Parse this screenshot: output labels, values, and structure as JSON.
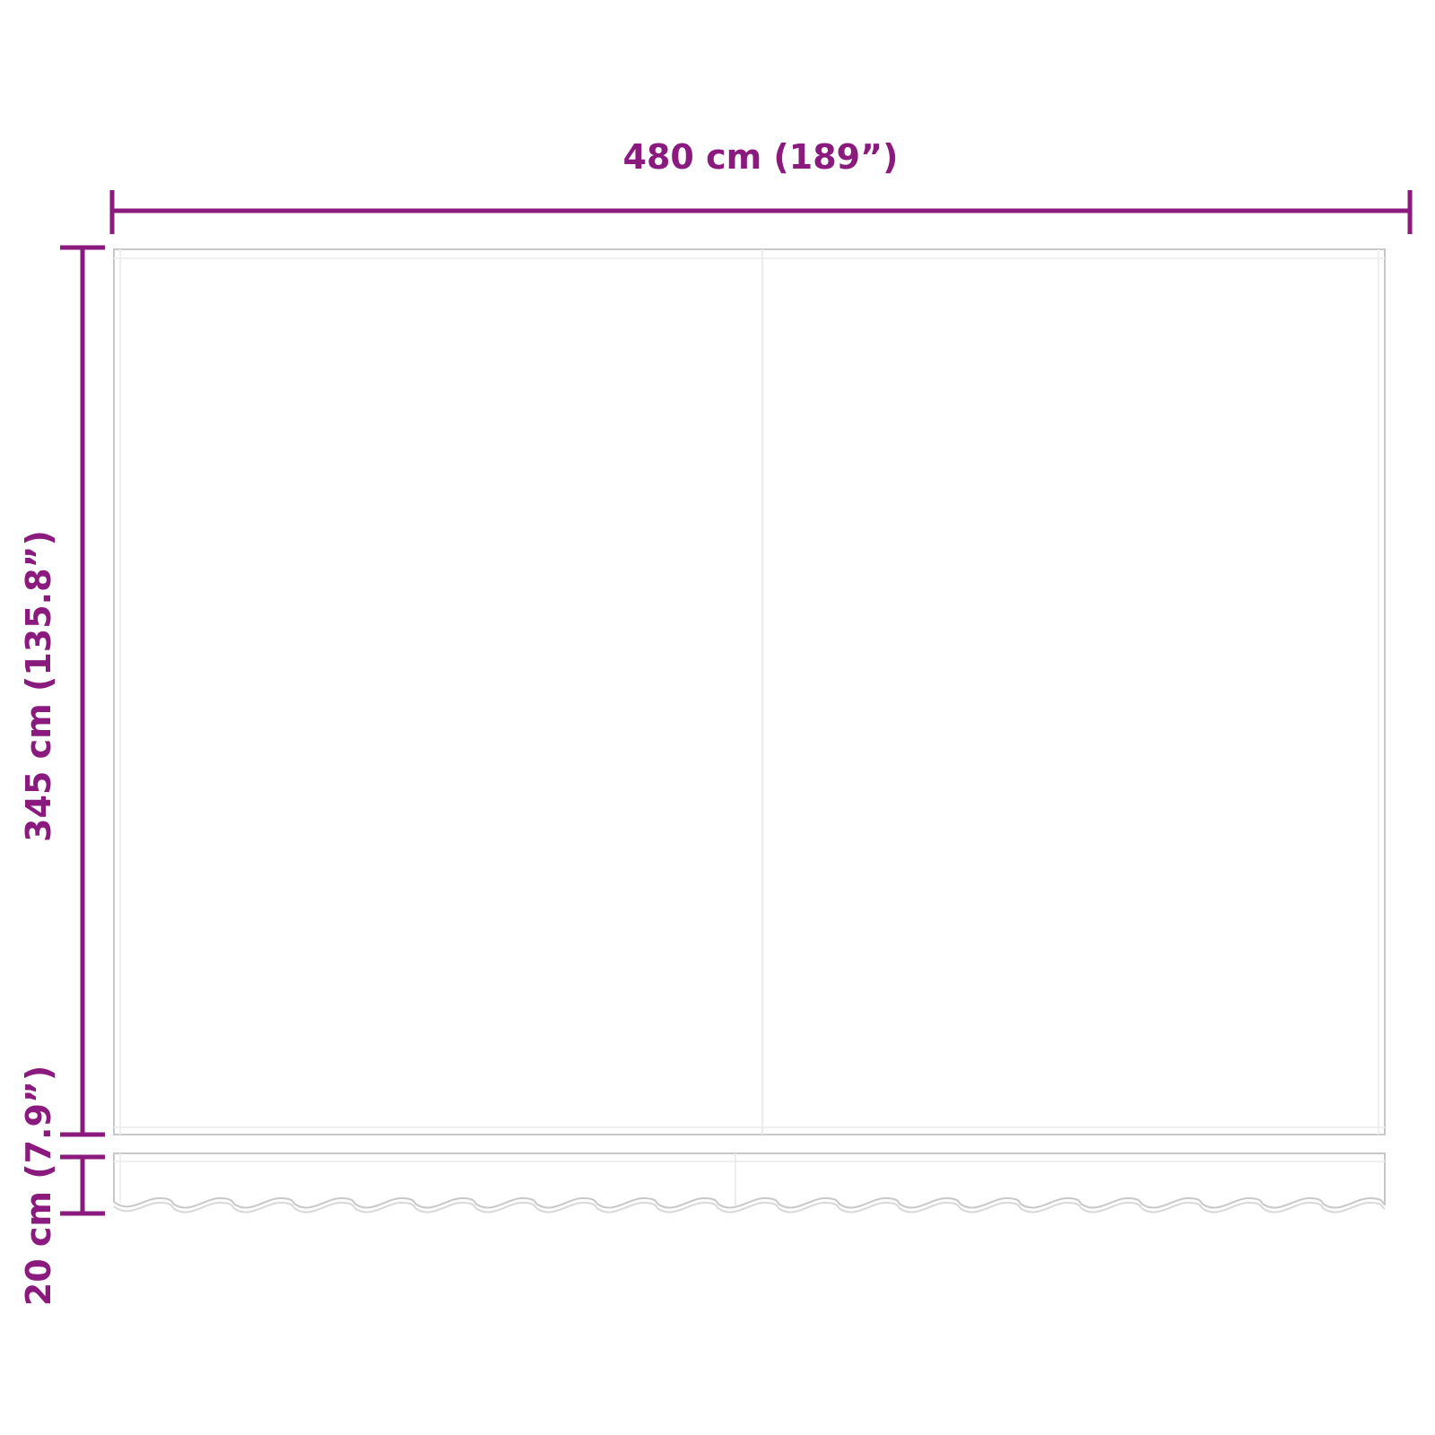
{
  "colors": {
    "dimension": "#8b1a7f",
    "outline": "#c8c8c8",
    "seam": "#ececec"
  },
  "dimensions": {
    "width": "480 cm (189”)",
    "height": "345 cm (135.8”)",
    "valance": "20 cm (7.9”)"
  }
}
